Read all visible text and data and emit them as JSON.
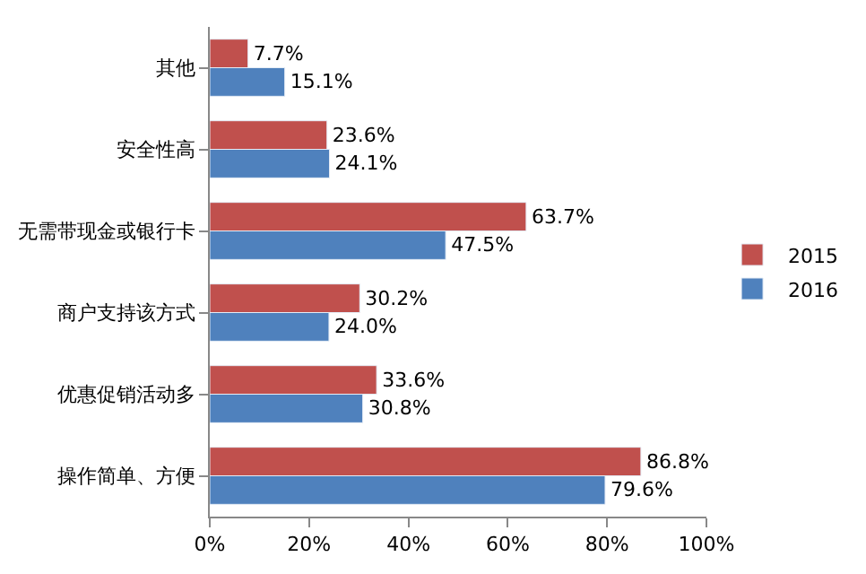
{
  "chart_data": {
    "type": "bar",
    "orientation": "horizontal",
    "categories": [
      "其他",
      "安全性高",
      "无需带现金或银行卡",
      "商户支持该方式",
      "优惠促销活动多",
      "操作简单、方便"
    ],
    "series": [
      {
        "name": "2015",
        "color": "#c0504d",
        "values": [
          7.7,
          23.6,
          63.7,
          30.2,
          33.6,
          86.8
        ],
        "value_labels": [
          "7.7%",
          "23.6%",
          "63.7%",
          "30.2%",
          "33.6%",
          "86.8%"
        ]
      },
      {
        "name": "2016",
        "color": "#4f81bd",
        "values": [
          15.1,
          24.1,
          47.5,
          24.0,
          30.8,
          79.6
        ],
        "value_labels": [
          "15.1%",
          "24.1%",
          "47.5%",
          "24.0%",
          "30.8%",
          "79.6%"
        ]
      }
    ],
    "xlim": [
      0,
      100
    ],
    "xticks": [
      {
        "value": 0,
        "label": "0%"
      },
      {
        "value": 20,
        "label": "20%"
      },
      {
        "value": 40,
        "label": "40%"
      },
      {
        "value": 60,
        "label": "60%"
      },
      {
        "value": 80,
        "label": "80%"
      },
      {
        "value": 100,
        "label": "100%"
      }
    ],
    "legend": "right"
  }
}
